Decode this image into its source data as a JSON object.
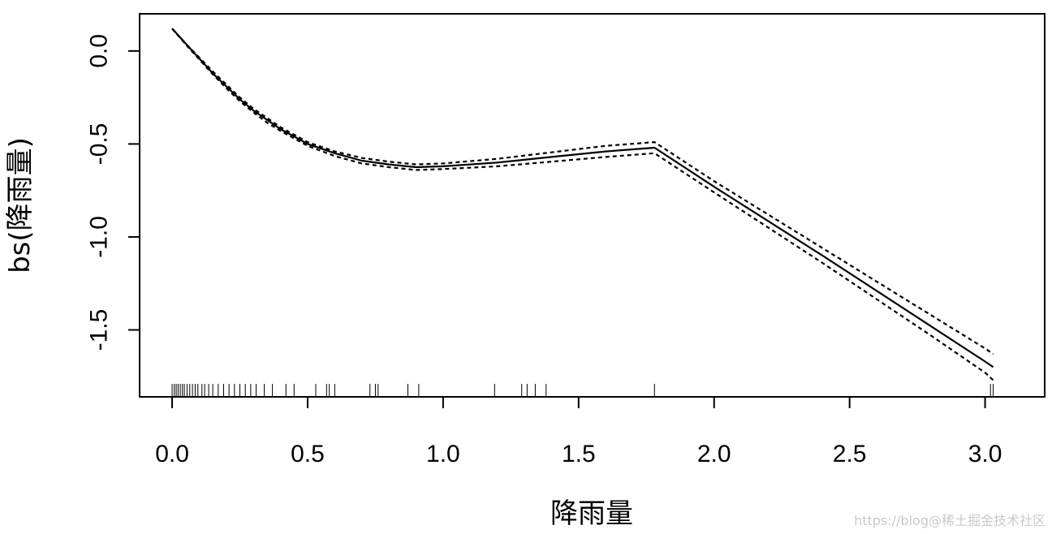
{
  "chart_data": {
    "type": "line",
    "xlabel": "降雨量",
    "ylabel": "bs(降雨量)",
    "xlim": [
      -0.12,
      3.22
    ],
    "ylim": [
      -1.86,
      0.2
    ],
    "x_ticks": [
      0.0,
      0.5,
      1.0,
      1.5,
      2.0,
      2.5,
      3.0
    ],
    "x_tick_labels": [
      "0.0",
      "0.5",
      "1.0",
      "1.5",
      "2.0",
      "2.5",
      "3.0"
    ],
    "y_ticks": [
      0.0,
      -0.5,
      -1.0,
      -1.5
    ],
    "y_tick_labels": [
      "0.0",
      "-0.5",
      "-1.0",
      "-1.5"
    ],
    "series": [
      {
        "style": "solid",
        "x": [
          0.0,
          0.05,
          0.1,
          0.15,
          0.2,
          0.25,
          0.3,
          0.35,
          0.4,
          0.45,
          0.5,
          0.6,
          0.7,
          0.8,
          0.9,
          1.0,
          1.2,
          1.4,
          1.6,
          1.78,
          2.0,
          2.4,
          2.8,
          3.0,
          3.03
        ],
        "y": [
          0.12,
          0.04,
          -0.04,
          -0.12,
          -0.19,
          -0.26,
          -0.32,
          -0.37,
          -0.42,
          -0.46,
          -0.5,
          -0.55,
          -0.59,
          -0.61,
          -0.625,
          -0.62,
          -0.6,
          -0.57,
          -0.54,
          -0.52,
          -0.73,
          -1.1,
          -1.48,
          -1.67,
          -1.7
        ]
      },
      {
        "style": "dotted",
        "x": [
          0.0,
          0.05,
          0.1,
          0.15,
          0.2,
          0.25,
          0.3,
          0.35,
          0.4,
          0.45,
          0.5,
          0.6,
          0.7,
          0.8,
          0.9,
          1.0,
          1.2,
          1.4,
          1.6,
          1.78,
          2.0,
          2.4,
          2.8,
          3.0,
          3.03
        ],
        "y": [
          0.12,
          0.04,
          -0.035,
          -0.11,
          -0.18,
          -0.25,
          -0.31,
          -0.36,
          -0.41,
          -0.45,
          -0.49,
          -0.54,
          -0.575,
          -0.595,
          -0.61,
          -0.605,
          -0.58,
          -0.545,
          -0.51,
          -0.49,
          -0.7,
          -1.06,
          -1.42,
          -1.6,
          -1.63
        ]
      },
      {
        "style": "dotted",
        "x": [
          0.0,
          0.05,
          0.1,
          0.15,
          0.2,
          0.25,
          0.3,
          0.35,
          0.4,
          0.45,
          0.5,
          0.6,
          0.7,
          0.8,
          0.9,
          1.0,
          1.2,
          1.4,
          1.6,
          1.78,
          2.0,
          2.4,
          2.8,
          3.0,
          3.03
        ],
        "y": [
          0.12,
          0.035,
          -0.045,
          -0.125,
          -0.2,
          -0.27,
          -0.33,
          -0.385,
          -0.43,
          -0.47,
          -0.51,
          -0.565,
          -0.605,
          -0.625,
          -0.64,
          -0.635,
          -0.62,
          -0.595,
          -0.57,
          -0.55,
          -0.76,
          -1.14,
          -1.53,
          -1.73,
          -1.77
        ]
      }
    ],
    "rug": [
      0.0,
      0.008,
      0.015,
      0.022,
      0.03,
      0.038,
      0.045,
      0.055,
      0.065,
      0.075,
      0.085,
      0.095,
      0.11,
      0.12,
      0.135,
      0.15,
      0.17,
      0.19,
      0.21,
      0.23,
      0.25,
      0.27,
      0.29,
      0.31,
      0.34,
      0.37,
      0.42,
      0.45,
      0.53,
      0.57,
      0.58,
      0.6,
      0.73,
      0.75,
      0.76,
      0.87,
      0.91,
      1.19,
      1.29,
      1.31,
      1.34,
      1.38,
      1.78,
      3.02,
      3.03
    ],
    "grid": false,
    "legend": "none"
  },
  "watermark": "https://blog@稀土掘金技术社区"
}
